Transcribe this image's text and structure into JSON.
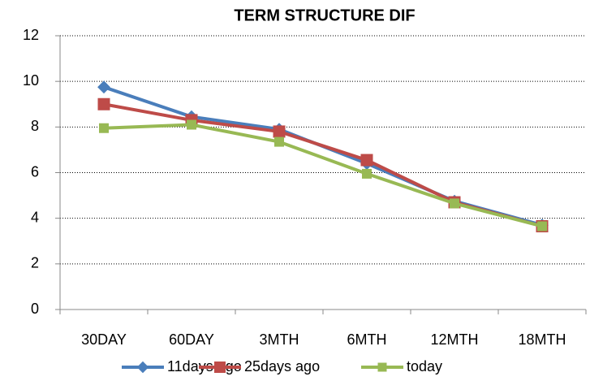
{
  "chart_data": {
    "type": "line",
    "title": "TERM STRUCTURE DIF",
    "categories": [
      "30DAY",
      "60DAY",
      "3MTH",
      "6MTH",
      "12MTH",
      "18MTH"
    ],
    "series": [
      {
        "name": "11days ago",
        "color": "#4a7ebb",
        "marker": "diamond",
        "values": [
          9.75,
          8.45,
          7.9,
          6.4,
          4.75,
          3.7
        ]
      },
      {
        "name": "25days ago",
        "color": "#be4b48",
        "marker": "square",
        "values": [
          9.0,
          8.3,
          7.8,
          6.55,
          4.7,
          3.65
        ]
      },
      {
        "name": "today",
        "color": "#98b954",
        "marker": "square",
        "values": [
          7.95,
          8.1,
          7.35,
          5.95,
          4.65,
          3.65
        ]
      }
    ],
    "ylim": [
      0,
      12
    ],
    "yticks": [
      0,
      2,
      4,
      6,
      8,
      10,
      12
    ],
    "grid": true,
    "legend": "bottom"
  }
}
